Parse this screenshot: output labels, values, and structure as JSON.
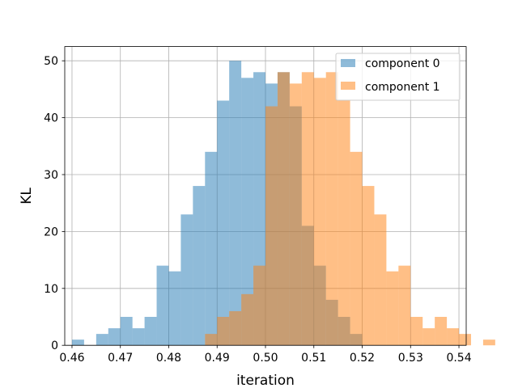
{
  "chart_data": {
    "type": "histogram",
    "xlabel": "iteration",
    "ylabel": "KL",
    "xlim": [
      0.4585,
      0.5415
    ],
    "ylim": [
      0,
      52.5
    ],
    "xticks": [
      "0.46",
      "0.47",
      "0.48",
      "0.49",
      "0.50",
      "0.51",
      "0.52",
      "0.53",
      "0.54"
    ],
    "yticks": [
      "0",
      "10",
      "20",
      "30",
      "40",
      "50"
    ],
    "grid": true,
    "legend_position": "top-right",
    "bin_width": 0.0025,
    "series": [
      {
        "name": "component 0",
        "color": "#1f77b4",
        "alpha": 0.5,
        "bins": [
          {
            "x": 0.4625,
            "count": 1
          },
          {
            "x": 0.465,
            "count": 0
          },
          {
            "x": 0.4675,
            "count": 2
          },
          {
            "x": 0.47,
            "count": 3
          },
          {
            "x": 0.4725,
            "count": 5
          },
          {
            "x": 0.475,
            "count": 3
          },
          {
            "x": 0.4775,
            "count": 5
          },
          {
            "x": 0.48,
            "count": 14
          },
          {
            "x": 0.4825,
            "count": 13
          },
          {
            "x": 0.485,
            "count": 23
          },
          {
            "x": 0.4875,
            "count": 28
          },
          {
            "x": 0.49,
            "count": 34
          },
          {
            "x": 0.4925,
            "count": 43
          },
          {
            "x": 0.495,
            "count": 50
          },
          {
            "x": 0.4975,
            "count": 47
          },
          {
            "x": 0.5,
            "count": 48
          },
          {
            "x": 0.5025,
            "count": 46
          },
          {
            "x": 0.505,
            "count": 48
          },
          {
            "x": 0.5075,
            "count": 42
          },
          {
            "x": 0.51,
            "count": 21
          },
          {
            "x": 0.5125,
            "count": 14
          },
          {
            "x": 0.515,
            "count": 8
          },
          {
            "x": 0.5175,
            "count": 5
          },
          {
            "x": 0.52,
            "count": 2
          }
        ]
      },
      {
        "name": "component 1",
        "color": "#ff7f0e",
        "alpha": 0.5,
        "bins": [
          {
            "x": 0.49,
            "count": 2
          },
          {
            "x": 0.4925,
            "count": 5
          },
          {
            "x": 0.495,
            "count": 6
          },
          {
            "x": 0.4975,
            "count": 9
          },
          {
            "x": 0.5,
            "count": 14
          },
          {
            "x": 0.5025,
            "count": 42
          },
          {
            "x": 0.505,
            "count": 48
          },
          {
            "x": 0.5075,
            "count": 46
          },
          {
            "x": 0.51,
            "count": 48
          },
          {
            "x": 0.5125,
            "count": 47
          },
          {
            "x": 0.515,
            "count": 48
          },
          {
            "x": 0.5175,
            "count": 43
          },
          {
            "x": 0.52,
            "count": 34
          },
          {
            "x": 0.5225,
            "count": 28
          },
          {
            "x": 0.525,
            "count": 23
          },
          {
            "x": 0.5275,
            "count": 13
          },
          {
            "x": 0.53,
            "count": 14
          },
          {
            "x": 0.5325,
            "count": 5
          },
          {
            "x": 0.535,
            "count": 3
          },
          {
            "x": 0.5375,
            "count": 5
          },
          {
            "x": 0.54,
            "count": 3
          },
          {
            "x": 0.5425,
            "count": 2
          },
          {
            "x": 0.545,
            "count": 0
          },
          {
            "x": 0.5475,
            "count": 1
          }
        ]
      }
    ]
  }
}
